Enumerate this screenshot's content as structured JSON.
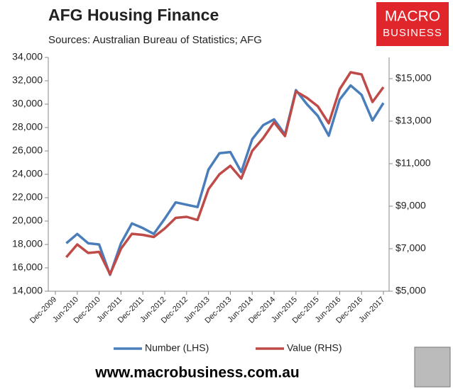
{
  "chart_data": {
    "type": "line",
    "title": "AFG Housing Finance",
    "subtitle": "Sources: Australian Bureau of Statistics; AFG",
    "logo": [
      "MACRO",
      "BUSINESS"
    ],
    "footer": "www.macrobusiness.com.au",
    "categories": [
      "Dec-2009",
      null,
      "Jun-2010",
      null,
      "Dec-2010",
      null,
      "Jun-2011",
      null,
      "Dec-2011",
      null,
      "Jun-2012",
      null,
      "Dec-2012",
      null,
      "Jun-2013",
      null,
      "Dec-2013",
      null,
      "Jun-2014",
      null,
      "Dec-2014",
      null,
      "Jun-2015",
      null,
      "Dec-2015",
      null,
      "Jun-2016",
      null,
      "Dec-2016",
      null,
      "Jun-2017"
    ],
    "series": [
      {
        "name": "Number (LHS)",
        "color": "#4a7ebb",
        "axis": "y",
        "values": [
          null,
          18100,
          18900,
          18100,
          18000,
          15400,
          18100,
          19800,
          19400,
          18900,
          20200,
          21600,
          21400,
          21200,
          24400,
          25800,
          25900,
          24200,
          27000,
          28200,
          28700,
          27400,
          31200,
          30000,
          29000,
          27300,
          30400,
          31600,
          30800,
          28600,
          30100
        ]
      },
      {
        "name": "Value (RHS)",
        "color": "#be4b48",
        "axis": "y2",
        "values": [
          null,
          6600,
          7200,
          6800,
          6850,
          5800,
          7000,
          7700,
          7650,
          7550,
          7950,
          8450,
          8500,
          8350,
          9800,
          10500,
          10900,
          10300,
          11600,
          12200,
          12950,
          12300,
          14400,
          14100,
          13700,
          12900,
          14500,
          15300,
          15200,
          13900,
          14600
        ]
      }
    ],
    "ylim": [
      14000,
      34000
    ],
    "yticks": [
      {
        "value": 14000,
        "label": "14,000"
      },
      {
        "value": 16000,
        "label": "16,000"
      },
      {
        "value": 18000,
        "label": "18,000"
      },
      {
        "value": 20000,
        "label": "20,000"
      },
      {
        "value": 22000,
        "label": "22,000"
      },
      {
        "value": 24000,
        "label": "24,000"
      },
      {
        "value": 26000,
        "label": "26,000"
      },
      {
        "value": 28000,
        "label": "28,000"
      },
      {
        "value": 30000,
        "label": "30,000"
      },
      {
        "value": 32000,
        "label": "32,000"
      },
      {
        "value": 34000,
        "label": "34,000"
      }
    ],
    "y2lim": [
      5000,
      16000
    ],
    "y2ticks": [
      {
        "value": 5000,
        "label": "$5,000"
      },
      {
        "value": 7000,
        "label": "$7,000"
      },
      {
        "value": 9000,
        "label": "$9,000"
      },
      {
        "value": 11000,
        "label": "$11,000"
      },
      {
        "value": 13000,
        "label": "$13,000"
      },
      {
        "value": 15000,
        "label": "$15,000"
      }
    ],
    "grid": false,
    "legend": "bottom"
  }
}
